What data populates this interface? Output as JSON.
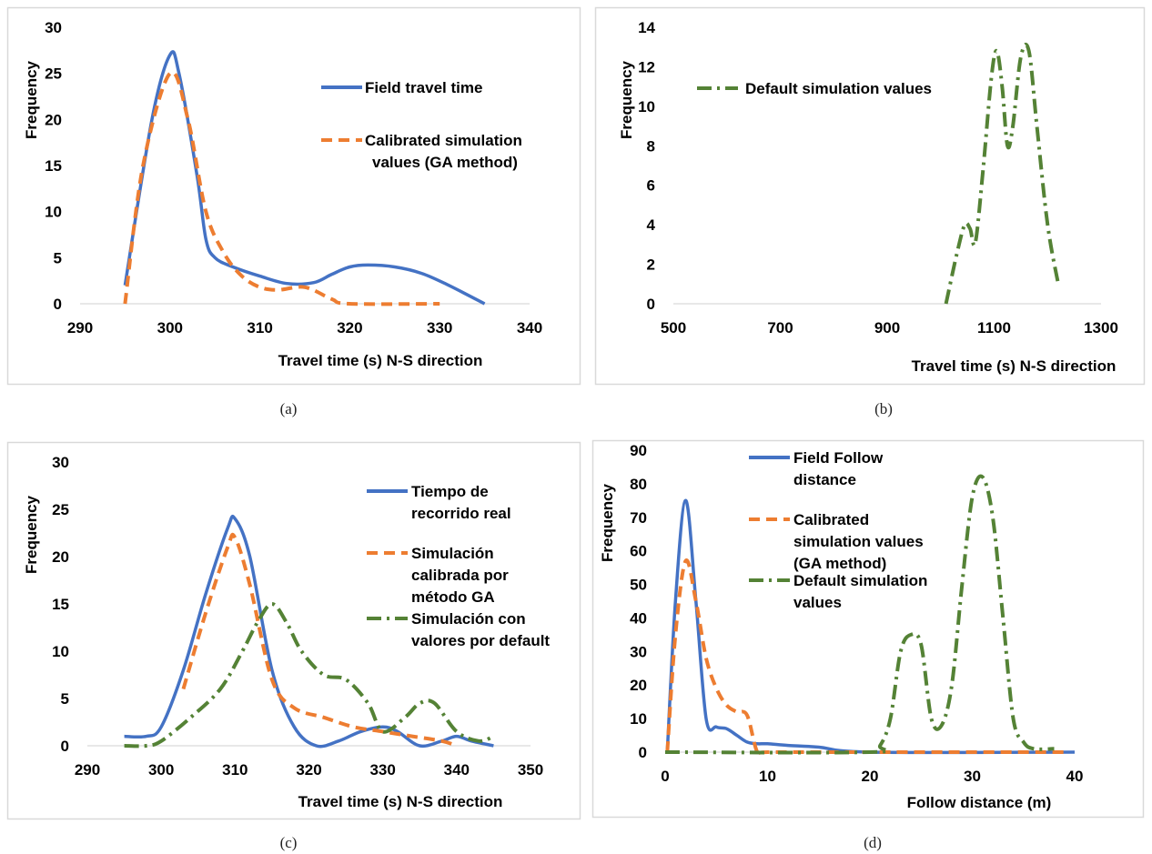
{
  "captions": [
    "(a)",
    "(b)",
    "(c)",
    "(d)"
  ],
  "colors": {
    "field": "#4472C4",
    "calibrated": "#ED7D31",
    "default": "#548235",
    "frame": "#d9d9d9"
  },
  "chart_data": [
    {
      "type": "line",
      "ylabel": "Frequency",
      "xlabel": "Travel time (s) N-S direction",
      "xlim": [
        290,
        340
      ],
      "ylim": [
        0,
        30
      ],
      "xticks": [
        290,
        300,
        310,
        320,
        330,
        340
      ],
      "yticks": [
        0,
        5,
        10,
        15,
        20,
        25,
        30
      ],
      "series": [
        {
          "name": "Field travel time",
          "style": "solid",
          "x": [
            295,
            298,
            300,
            301,
            303,
            304,
            305,
            307,
            310,
            313,
            316,
            318,
            320,
            322,
            325,
            328,
            331,
            335
          ],
          "y": [
            2,
            20,
            27,
            25,
            14,
            7,
            5,
            4,
            3,
            2.2,
            2.3,
            3.2,
            4,
            4.2,
            4,
            3.3,
            2,
            0
          ]
        },
        {
          "name": "Calibrated simulation values (GA method)",
          "style": "dashed",
          "x": [
            295,
            297,
            300,
            302,
            304,
            306,
            308,
            310,
            312,
            315,
            318,
            320,
            330
          ],
          "y": [
            0,
            15,
            25,
            20,
            10,
            5.5,
            3,
            1.8,
            1.5,
            1.8,
            0.5,
            0,
            0
          ]
        }
      ]
    },
    {
      "type": "line",
      "ylabel": "Frequency",
      "xlabel": "Travel time (s) N-S direction",
      "xlim": [
        500,
        1300
      ],
      "ylim": [
        0,
        14
      ],
      "xticks": [
        500,
        700,
        900,
        1100,
        1300
      ],
      "yticks": [
        0,
        2,
        4,
        6,
        8,
        10,
        12,
        14
      ],
      "series": [
        {
          "name": "Default simulation values",
          "style": "dashdot",
          "x": [
            1010,
            1030,
            1045,
            1055,
            1065,
            1080,
            1095,
            1105,
            1115,
            1125,
            1135,
            1150,
            1165,
            1180,
            1200,
            1220
          ],
          "y": [
            0,
            2.5,
            4,
            3.8,
            3.1,
            7,
            11.5,
            12.8,
            11,
            8,
            9,
            12.5,
            12.8,
            9,
            4,
            1
          ]
        }
      ]
    },
    {
      "type": "line",
      "ylabel": "Frequency",
      "xlabel": "Travel time (s) N-S direction",
      "xlim": [
        290,
        350
      ],
      "ylim": [
        0,
        30
      ],
      "xticks": [
        290,
        300,
        310,
        320,
        330,
        340,
        350
      ],
      "yticks": [
        0,
        5,
        10,
        15,
        20,
        25,
        30
      ],
      "series": [
        {
          "name": "Tiempo de recorrido real",
          "style": "solid",
          "x": [
            295,
            298,
            300,
            303,
            306,
            309,
            310,
            312,
            315,
            318,
            321,
            324,
            327,
            330,
            332,
            335,
            338,
            340,
            342,
            345
          ],
          "y": [
            1,
            1,
            2,
            8,
            16,
            23,
            24,
            20,
            8,
            2,
            0,
            0.5,
            1.5,
            2,
            1.5,
            0,
            0.5,
            1,
            0.5,
            0
          ]
        },
        {
          "name": "Simulación calibrada por método GA",
          "style": "dashed",
          "x": [
            303,
            306,
            309,
            310,
            312,
            315,
            318,
            322,
            326,
            330,
            334,
            338,
            340
          ],
          "y": [
            6,
            14,
            21,
            22,
            17,
            7,
            4,
            3,
            2,
            1.5,
            1,
            0.5,
            0
          ]
        },
        {
          "name": "Simulación con valores por default",
          "style": "dashdot",
          "x": [
            295,
            298,
            300,
            304,
            308,
            311,
            313,
            315,
            317,
            319,
            322,
            325,
            328,
            330,
            333,
            335,
            337,
            340,
            343,
            345
          ],
          "y": [
            0,
            0,
            0.5,
            3,
            6,
            10,
            13,
            15,
            13,
            10,
            7.5,
            7,
            4.5,
            1.5,
            3,
            4.5,
            4.5,
            1.5,
            0.5,
            1
          ]
        }
      ]
    },
    {
      "type": "line",
      "ylabel": "Frequency",
      "xlabel": "Follow distance (m)",
      "xlim": [
        0,
        40
      ],
      "ylim": [
        0,
        90
      ],
      "xticks": [
        0,
        10,
        20,
        30,
        40
      ],
      "yticks": [
        0,
        10,
        20,
        30,
        40,
        50,
        60,
        70,
        80,
        90
      ],
      "series": [
        {
          "name": "Field Follow distance",
          "style": "solid",
          "x": [
            0.2,
            1,
            2,
            3,
            4,
            5,
            6,
            7,
            8,
            9,
            10,
            12,
            15,
            20,
            40
          ],
          "y": [
            0,
            45,
            75,
            45,
            10,
            7.5,
            7,
            5,
            3,
            2.5,
            2.5,
            2,
            1.5,
            0,
            0
          ]
        },
        {
          "name": "Calibrated simulation values (GA method)",
          "style": "dashed",
          "x": [
            0.2,
            1,
            2,
            3,
            4,
            5,
            6,
            7,
            8,
            9,
            10,
            20,
            39
          ],
          "y": [
            0,
            35,
            57,
            45,
            28,
            19,
            14,
            12,
            11,
            0,
            0,
            0,
            0
          ]
        },
        {
          "name": "Default simulation values",
          "style": "dashdot",
          "x": [
            0,
            20,
            21,
            22,
            23,
            24,
            25,
            26,
            27,
            28,
            29,
            30,
            31,
            32,
            33,
            34,
            35,
            36,
            38
          ],
          "y": [
            0,
            0,
            2,
            10,
            30,
            35,
            32,
            10,
            8,
            20,
            50,
            76,
            82,
            70,
            40,
            10,
            3,
            1,
            1
          ]
        }
      ]
    }
  ]
}
